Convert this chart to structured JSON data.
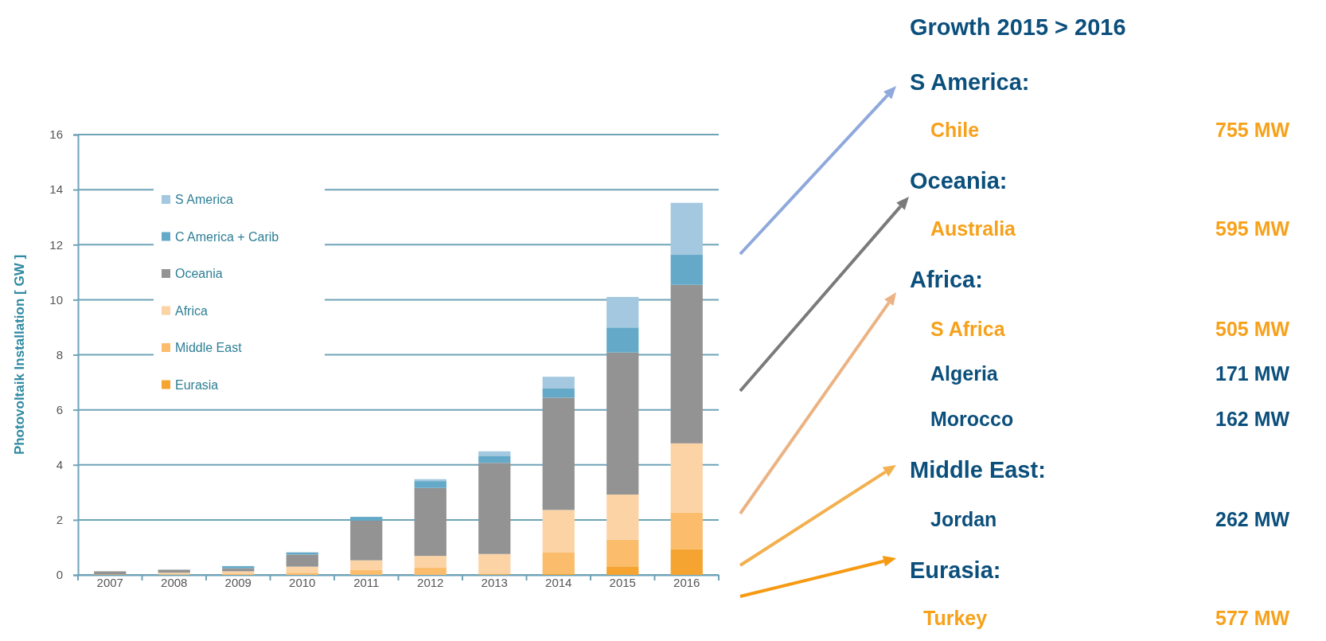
{
  "chart_data": {
    "type": "bar",
    "stacked": true,
    "ylabel": "Photovoltaik Installation [ GW ]",
    "categories": [
      "2007",
      "2008",
      "2009",
      "2010",
      "2011",
      "2012",
      "2013",
      "2014",
      "2015",
      "2016"
    ],
    "series": [
      {
        "name": "Eurasia",
        "color": "#f5a431",
        "values": [
          0,
          0,
          0,
          0,
          0,
          0,
          0.02,
          0.05,
          0.31,
          0.93
        ]
      },
      {
        "name": "Middle East",
        "color": "#fbbd6c",
        "values": [
          0.02,
          0.02,
          0.05,
          0.08,
          0.19,
          0.26,
          0.03,
          0.76,
          0.97,
          1.34
        ]
      },
      {
        "name": "Africa",
        "color": "#fcd3a5",
        "values": [
          null,
          0.06,
          0.08,
          0.22,
          0.34,
          0.43,
          0.71,
          1.55,
          1.64,
          2.51
        ]
      },
      {
        "name": "Oceania",
        "color": "#939393",
        "values": [
          0.11,
          0.11,
          0.11,
          0.44,
          1.44,
          2.47,
          3.31,
          4.08,
          5.16,
          5.76
        ]
      },
      {
        "name": "C America + Carib",
        "color": "#65a9c9",
        "values": [
          null,
          null,
          0.08,
          0.08,
          0.14,
          0.25,
          0.26,
          0.33,
          0.91,
          1.09
        ]
      },
      {
        "name": "S America",
        "color": "#a3c8df",
        "values": [
          0,
          0,
          0,
          0,
          null,
          0.07,
          0.16,
          0.43,
          1.11,
          1.89
        ]
      }
    ],
    "ylim": [
      0,
      16
    ],
    "yticks": [
      0,
      2,
      4,
      6,
      8,
      10,
      12,
      14,
      16
    ],
    "grid": "y",
    "legend": "top left",
    "annotations": [
      "Growth 2015 > 2016",
      "S America:",
      "Chile",
      "755 MW",
      "Oceania:",
      "Australia",
      "595 MW",
      "Africa:",
      "S Africa",
      "505  MW",
      "Algeria",
      "171  MW",
      "Morocco",
      "162  MW",
      "Middle East:",
      "Jordan",
      "262  MW",
      "Eurasia:",
      "Turkey",
      "577  MW"
    ]
  }
}
